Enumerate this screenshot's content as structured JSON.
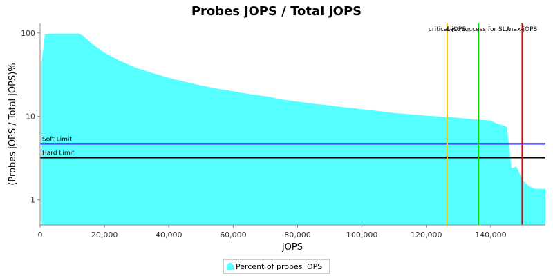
{
  "chart_data": {
    "type": "area",
    "title": "Probes jOPS / Total jOPS",
    "xlabel": "jOPS",
    "ylabel": "(Probes jOPS / Total jOPS)%",
    "y_scale": "log",
    "xlim": [
      0,
      157000
    ],
    "ylim": [
      0.5,
      130
    ],
    "x_ticks": [
      "0",
      "20,000",
      "40,000",
      "60,000",
      "80,000",
      "100,000",
      "120,000",
      "140,000"
    ],
    "x_tick_values": [
      0,
      20000,
      40000,
      60000,
      80000,
      100000,
      120000,
      140000
    ],
    "y_ticks": [
      "1",
      "10",
      "100"
    ],
    "y_tick_values": [
      1,
      10,
      100
    ],
    "grid": false,
    "legend_position": "bottom",
    "series": [
      {
        "name": "Percent of probes jOPS",
        "color": "#55ffff",
        "x": [
          500,
          1500,
          3000,
          6000,
          9000,
          12000,
          13500,
          16000,
          20000,
          25000,
          30000,
          35000,
          40000,
          45000,
          50000,
          55000,
          60000,
          65000,
          70000,
          75000,
          80000,
          85000,
          90000,
          95000,
          100000,
          105000,
          110000,
          115000,
          120000,
          125000,
          130000,
          135000,
          140000,
          142000,
          144000,
          145000,
          146500,
          148000,
          150000,
          152000,
          154000,
          157000
        ],
        "y": [
          45,
          97,
          98,
          98.5,
          98.5,
          98.5,
          92,
          75,
          58,
          46,
          38,
          33,
          29,
          26,
          23.5,
          21.5,
          20,
          18.5,
          17.5,
          16,
          15,
          14.2,
          13.5,
          12.8,
          12.2,
          11.6,
          11,
          10.6,
          10.2,
          9.9,
          9.6,
          9.2,
          8.9,
          8.2,
          7.8,
          7.5,
          2.4,
          2.5,
          1.7,
          1.45,
          1.35,
          1.35
        ]
      }
    ],
    "horizontal_lines": [
      {
        "label": "Soft Limit",
        "value": 4.7,
        "color": "#0000ff"
      },
      {
        "label": "Hard Limit",
        "value": 3.2,
        "color": "#000000"
      }
    ],
    "vertical_markers": [
      {
        "label": "critical-jOPS",
        "value": 126500,
        "color": "#ffcc00"
      },
      {
        "label": "Last success for SLA",
        "value": 136200,
        "color": "#00dd00"
      },
      {
        "label": "max-jOPS",
        "value": 149800,
        "color": "#dd0000"
      }
    ]
  }
}
